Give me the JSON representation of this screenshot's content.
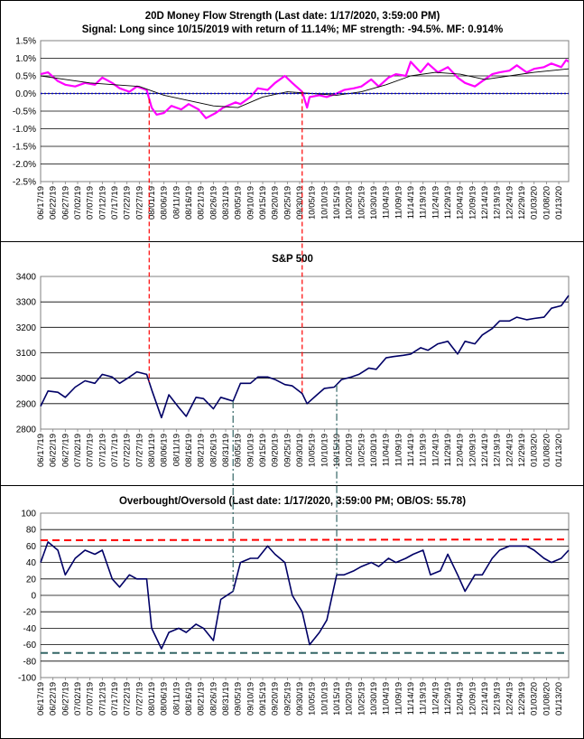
{
  "colors": {
    "money_flow": "#ff00ff",
    "money_flow_average": "#000000",
    "zero_line": "#0000cc",
    "sp500": "#000066",
    "obos": "#000066",
    "overbought_line": "#ff0000",
    "oversold_line": "#336666",
    "signal_marker": "#ff0000",
    "signal_marker_alt": "#336666"
  },
  "x_tick_labels_top": [
    "06/17/19",
    "06/22/19",
    "06/27/19",
    "07/02/19",
    "07/07/19",
    "07/12/19",
    "07/17/19",
    "07/22/19",
    "07/27/19",
    "08/01/19",
    "08/06/19",
    "08/11/19",
    "08/16/19",
    "08/21/19",
    "08/26/19",
    "08/31/19",
    "09/05/19",
    "09/10/19",
    "09/15/19",
    "09/20/19",
    "09/25/19",
    "09/30/19",
    "10/05/19",
    "10/10/19",
    "10/15/19",
    "10/20/19",
    "10/25/19",
    "10/30/19",
    "11/04/19",
    "11/09/19",
    "11/14/19",
    "11/19/19",
    "11/24/19",
    "11/29/19",
    "12/04/19",
    "12/09/19",
    "12/14/19",
    "12/19/19",
    "12/24/19",
    "12/29/19",
    "01/03/20",
    "01/08/20",
    "01/13/20"
  ],
  "x_tick_labels_bottom": [
    "06/17/19",
    "06/22/19",
    "06/27/19",
    "07/02/19",
    "07/07/19",
    "07/12/19",
    "07/17/19",
    "07/22/19",
    "07/27/19",
    "08/01/19",
    "08/06/19",
    "08/11/19",
    "08/16/19",
    "08/21/19",
    "08/26/19",
    "08/31/19",
    "09/05/19",
    "09/10/19",
    "09/15/19",
    "09/20/19",
    "09/25/19",
    "09/30/19",
    "10/05/19",
    "10/10/19",
    "10/15/19",
    "10/20/19",
    "10/25/19",
    "10/30/19",
    "11/04/19",
    "11/09/19",
    "11/14/19",
    "11/19/19",
    "11/24/19",
    "11/29/19",
    "12/04/19",
    "12/09/19",
    "12/14/19",
    "12/19/19",
    "12/24/19",
    "12/29/19",
    "01/03/20",
    "01/08/20",
    "01/13/20"
  ],
  "chart_data": [
    {
      "type": "line",
      "title": "20D Money Flow Strength (Last date: 1/17/2020, 3:59:00 PM)",
      "subtitle": "Signal: Long since 10/15/2019 with return of 11.14%; MF strength: -94.5%. MF: 0.914%",
      "xlabel": "",
      "ylabel": "",
      "ylim": [
        -2.5,
        1.5
      ],
      "yticks": [
        1.5,
        1.0,
        0.5,
        0.0,
        -0.5,
        -1.0,
        -1.5,
        -2.0,
        -2.5
      ],
      "ytick_labels": [
        "1.5%",
        "1.0%",
        "0.5%",
        "0.0%",
        "-0.5%",
        "-1.0%",
        "-1.5%",
        "-2.0%",
        "-2.5%"
      ],
      "grid": true,
      "x_start": "06/17/19",
      "x_end": "01/17/20",
      "series": [
        {
          "name": "",
          "role": "money_flow",
          "color": "#ff00ff",
          "x": [
            "06/17/19",
            "06/20/19",
            "06/24/19",
            "06/27/19",
            "07/01/19",
            "07/05/19",
            "07/09/19",
            "07/12/19",
            "07/16/19",
            "07/19/19",
            "07/23/19",
            "07/26/19",
            "07/30/19",
            "08/01/19",
            "08/03/19",
            "08/06/19",
            "08/09/19",
            "08/13/19",
            "08/16/19",
            "08/20/19",
            "08/23/19",
            "08/27/19",
            "08/30/19",
            "09/04/19",
            "09/06/19",
            "09/10/19",
            "09/13/19",
            "09/17/19",
            "09/20/19",
            "09/24/19",
            "09/27/19",
            "10/01/19",
            "10/03/19",
            "10/04/19",
            "10/08/19",
            "10/11/19",
            "10/15/19",
            "10/18/19",
            "10/22/19",
            "10/25/19",
            "10/29/19",
            "11/01/19",
            "11/05/19",
            "11/08/19",
            "11/12/19",
            "11/14/19",
            "11/18/19",
            "11/21/19",
            "11/25/19",
            "11/29/19",
            "12/03/19",
            "12/06/19",
            "12/10/19",
            "12/13/19",
            "12/17/19",
            "12/20/19",
            "12/24/19",
            "12/27/19",
            "12/31/19",
            "01/03/20",
            "01/07/20",
            "01/10/20",
            "01/14/20",
            "01/16/20",
            "01/17/20"
          ],
          "y": [
            0.55,
            0.6,
            0.35,
            0.25,
            0.2,
            0.3,
            0.25,
            0.45,
            0.3,
            0.15,
            0.05,
            0.2,
            0.1,
            -0.4,
            -0.6,
            -0.55,
            -0.35,
            -0.45,
            -0.3,
            -0.45,
            -0.7,
            -0.55,
            -0.4,
            -0.25,
            -0.3,
            -0.1,
            0.15,
            0.1,
            0.3,
            0.5,
            0.3,
            0.05,
            -0.4,
            -0.1,
            -0.05,
            -0.1,
            0.0,
            0.1,
            0.15,
            0.2,
            0.4,
            0.2,
            0.45,
            0.55,
            0.5,
            0.9,
            0.6,
            0.85,
            0.6,
            0.75,
            0.45,
            0.3,
            0.2,
            0.35,
            0.55,
            0.6,
            0.65,
            0.8,
            0.6,
            0.7,
            0.75,
            0.85,
            0.75,
            0.95,
            0.9
          ]
        },
        {
          "name": "",
          "role": "average",
          "color": "#000000",
          "x": [
            "06/17/19",
            "06/27/19",
            "07/07/19",
            "07/17/19",
            "07/27/19",
            "08/06/19",
            "08/16/19",
            "08/26/19",
            "09/05/19",
            "09/15/19",
            "09/25/19",
            "10/05/19",
            "10/15/19",
            "10/25/19",
            "11/04/19",
            "11/14/19",
            "11/24/19",
            "12/04/19",
            "12/14/19",
            "12/24/19",
            "01/03/20",
            "01/17/20"
          ],
          "y": [
            0.5,
            0.4,
            0.3,
            0.25,
            0.2,
            -0.05,
            -0.2,
            -0.35,
            -0.4,
            -0.1,
            0.05,
            0.0,
            -0.05,
            0.05,
            0.25,
            0.5,
            0.6,
            0.55,
            0.4,
            0.5,
            0.6,
            0.7
          ]
        },
        {
          "name": "",
          "role": "zero_line",
          "color": "#0000cc",
          "x": [
            "06/17/19",
            "01/17/20"
          ],
          "y": [
            0.0,
            0.0
          ]
        }
      ],
      "signal_dates": [
        "07/31/19",
        "10/01/19"
      ]
    },
    {
      "type": "line",
      "title": "S&P 500",
      "xlabel": "",
      "ylabel": "",
      "ylim": [
        2800,
        3400
      ],
      "yticks": [
        3400,
        3300,
        3200,
        3100,
        3000,
        2900,
        2800
      ],
      "grid": true,
      "series": [
        {
          "name": "",
          "color": "#000066",
          "x": [
            "06/17/19",
            "06/20/19",
            "06/24/19",
            "06/27/19",
            "07/01/19",
            "07/05/19",
            "07/09/19",
            "07/12/19",
            "07/16/19",
            "07/19/19",
            "07/23/19",
            "07/26/19",
            "07/30/19",
            "08/01/19",
            "08/05/19",
            "08/08/19",
            "08/12/19",
            "08/15/19",
            "08/19/19",
            "08/22/19",
            "08/26/19",
            "08/29/19",
            "09/03/19",
            "09/06/19",
            "09/10/19",
            "09/13/19",
            "09/17/19",
            "09/20/19",
            "09/24/19",
            "09/27/19",
            "10/01/19",
            "10/03/19",
            "10/07/19",
            "10/10/19",
            "10/14/19",
            "10/17/19",
            "10/21/19",
            "10/24/19",
            "10/28/19",
            "10/31/19",
            "11/04/19",
            "11/07/19",
            "11/11/19",
            "11/14/19",
            "11/18/19",
            "11/21/19",
            "11/25/19",
            "11/29/19",
            "12/03/19",
            "12/06/19",
            "12/10/19",
            "12/13/19",
            "12/17/19",
            "12/20/19",
            "12/24/19",
            "12/27/19",
            "12/31/19",
            "01/03/20",
            "01/07/20",
            "01/10/20",
            "01/14/20",
            "01/17/20"
          ],
          "y": [
            2890,
            2950,
            2945,
            2925,
            2965,
            2990,
            2980,
            3015,
            3005,
            2980,
            3005,
            3025,
            3015,
            2955,
            2845,
            2935,
            2885,
            2850,
            2925,
            2920,
            2880,
            2925,
            2910,
            2980,
            2980,
            3005,
            3005,
            2995,
            2975,
            2970,
            2940,
            2900,
            2935,
            2960,
            2965,
            2995,
            3005,
            3015,
            3040,
            3035,
            3080,
            3085,
            3090,
            3095,
            3120,
            3110,
            3135,
            3145,
            3095,
            3145,
            3135,
            3170,
            3195,
            3225,
            3225,
            3240,
            3230,
            3235,
            3240,
            3275,
            3285,
            3325
          ]
        }
      ],
      "signal_dates": [
        "07/31/19",
        "10/01/19",
        "09/03/19",
        "10/15/19"
      ]
    },
    {
      "type": "line",
      "title": "Overbought/Oversold (Last date: 1/17/2020, 3:59:00 PM; OB/OS: 55.78)",
      "xlabel": "",
      "ylabel": "",
      "ylim": [
        -100,
        100
      ],
      "yticks": [
        100,
        80,
        60,
        40,
        20,
        0,
        -20,
        -40,
        -60,
        -80,
        -100
      ],
      "grid": true,
      "series": [
        {
          "name": "",
          "role": "obos",
          "color": "#000066",
          "x": [
            "06/17/19",
            "06/20/19",
            "06/24/19",
            "06/27/19",
            "07/01/19",
            "07/05/19",
            "07/09/19",
            "07/12/19",
            "07/16/19",
            "07/19/19",
            "07/23/19",
            "07/26/19",
            "07/30/19",
            "08/01/19",
            "08/05/19",
            "08/08/19",
            "08/12/19",
            "08/15/19",
            "08/19/19",
            "08/22/19",
            "08/26/19",
            "08/29/19",
            "09/03/19",
            "09/06/19",
            "09/10/19",
            "09/13/19",
            "09/17/19",
            "09/20/19",
            "09/24/19",
            "09/27/19",
            "10/01/19",
            "10/04/19",
            "10/08/19",
            "10/11/19",
            "10/15/19",
            "10/18/19",
            "10/22/19",
            "10/25/19",
            "10/29/19",
            "11/01/19",
            "11/05/19",
            "11/08/19",
            "11/12/19",
            "11/15/19",
            "11/19/19",
            "11/22/19",
            "11/26/19",
            "11/29/19",
            "12/03/19",
            "12/06/19",
            "12/10/19",
            "12/13/19",
            "12/17/19",
            "12/20/19",
            "12/24/19",
            "12/27/19",
            "12/31/19",
            "01/03/20",
            "01/07/20",
            "01/10/20",
            "01/14/20",
            "01/17/20"
          ],
          "y": [
            40,
            65,
            55,
            25,
            45,
            55,
            50,
            55,
            20,
            10,
            25,
            20,
            20,
            -40,
            -65,
            -45,
            -40,
            -45,
            -35,
            -40,
            -55,
            -5,
            5,
            40,
            45,
            45,
            60,
            50,
            40,
            0,
            -20,
            -60,
            -45,
            -30,
            25,
            25,
            30,
            35,
            40,
            35,
            45,
            40,
            45,
            50,
            55,
            25,
            30,
            50,
            25,
            5,
            25,
            25,
            45,
            55,
            60,
            60,
            60,
            55,
            45,
            40,
            45,
            55
          ]
        },
        {
          "name": "",
          "role": "overbought",
          "color": "#ff0000",
          "x": [
            "06/17/19",
            "01/17/20"
          ],
          "y": [
            67,
            68
          ]
        },
        {
          "name": "",
          "role": "oversold",
          "color": "#336666",
          "x": [
            "06/17/19",
            "01/17/20"
          ],
          "y": [
            -70,
            -70
          ]
        }
      ],
      "signal_dates": [
        "09/03/19",
        "10/15/19"
      ]
    }
  ]
}
